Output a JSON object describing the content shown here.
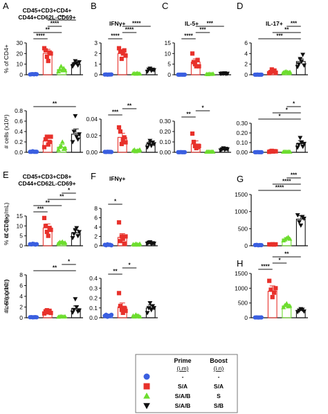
{
  "colors": {
    "blue": "#3a5fe0",
    "red": "#e8312b",
    "green": "#6ddd2e",
    "black": "#111111",
    "axis": "#111111"
  },
  "chart_data": [
    {
      "panel": "A",
      "type": "bar",
      "title": "CD45+CD3+CD4+ CD44+CD62L-CD69+",
      "title_lines": [
        "CD45+CD3+CD4+",
        "CD44+CD62L-CD69+"
      ],
      "ylabel": "% of CD4+",
      "ylim": [
        0,
        30
      ],
      "yticks": [
        "0",
        "10",
        "20",
        "30"
      ],
      "values": [
        0.5,
        20,
        5,
        10
      ],
      "errors": [
        0.3,
        4,
        2,
        2
      ],
      "points": [
        [
          0.3,
          0.5,
          0.6,
          0.4,
          0.7,
          0.5
        ],
        [
          25,
          23,
          17,
          13,
          21,
          20
        ],
        [
          3,
          5,
          8,
          4,
          6,
          4
        ],
        [
          8,
          10,
          13,
          11,
          9,
          12
        ]
      ],
      "sig": [
        {
          "a": 0,
          "b": 1,
          "label": "****"
        },
        {
          "a": 0,
          "b": 2,
          "label": "**"
        },
        {
          "a": 1,
          "b": 2,
          "label": "****"
        },
        {
          "a": 1,
          "b": 3,
          "label": "**"
        }
      ]
    },
    {
      "panel": "B",
      "type": "bar",
      "title": "IFNγ+",
      "title_lines": [
        "IFNγ+"
      ],
      "ylabel": "",
      "ylim": [
        0,
        3
      ],
      "yticks": [
        "0",
        "1",
        "2",
        "3"
      ],
      "values": [
        0.02,
        2.0,
        0.1,
        0.45
      ],
      "errors": [
        0.01,
        0.3,
        0.05,
        0.1
      ],
      "points": [
        [
          0.02,
          0.03,
          0.01,
          0.02,
          0.02,
          0.03
        ],
        [
          2.5,
          2.2,
          1.5,
          2.0,
          2.3,
          1.8
        ],
        [
          0.1,
          0.12,
          0.08,
          0.15,
          0.1,
          0.09
        ],
        [
          0.3,
          0.5,
          0.6,
          0.4,
          0.5,
          0.45
        ]
      ],
      "sig": [
        {
          "a": 0,
          "b": 1,
          "label": "****"
        },
        {
          "a": 1,
          "b": 2,
          "label": "****"
        },
        {
          "a": 1,
          "b": 3,
          "label": "****"
        }
      ]
    },
    {
      "panel": "C",
      "type": "bar",
      "title": "IL-5+",
      "title_lines": [
        "IL-5+"
      ],
      "ylabel": "",
      "ylim": [
        0,
        15
      ],
      "yticks": [
        "0",
        "5",
        "10",
        "15"
      ],
      "values": [
        0.05,
        6,
        0.3,
        0.6
      ],
      "errors": [
        0.05,
        1.5,
        0.2,
        0.3
      ],
      "points": [
        [
          0.05,
          0.04,
          0.06,
          0.05,
          0.05,
          0.05
        ],
        [
          10,
          6,
          5,
          4,
          7,
          4
        ],
        [
          0.3,
          0.2,
          0.4,
          0.3,
          0.3,
          0.4
        ],
        [
          0.5,
          0.7,
          0.6,
          0.8,
          0.5,
          0.6
        ]
      ],
      "sig": [
        {
          "a": 0,
          "b": 1,
          "label": "****"
        },
        {
          "a": 1,
          "b": 2,
          "label": "***"
        },
        {
          "a": 1,
          "b": 3,
          "label": "***"
        }
      ]
    },
    {
      "panel": "D",
      "type": "bar",
      "title": "IL-17+",
      "title_lines": [
        "IL-17+"
      ],
      "ylabel": "",
      "ylim": [
        0,
        6
      ],
      "yticks": [
        "0",
        "2",
        "4",
        "6"
      ],
      "values": [
        0.02,
        0.6,
        0.5,
        2.5
      ],
      "errors": [
        0.01,
        0.3,
        0.15,
        0.5
      ],
      "points": [
        [
          0.02,
          0.02,
          0.03,
          0.01,
          0.02,
          0.02
        ],
        [
          0.3,
          0.5,
          1.0,
          0.6,
          0.8,
          0.4
        ],
        [
          0.4,
          0.5,
          0.6,
          0.5,
          0.4,
          0.5
        ],
        [
          1.5,
          2.0,
          3.0,
          2.5,
          3.8,
          1.8
        ]
      ],
      "sig": [
        {
          "a": 0,
          "b": 3,
          "label": "***"
        },
        {
          "a": 1,
          "b": 3,
          "label": "**"
        },
        {
          "a": 2,
          "b": 3,
          "label": "***"
        }
      ]
    },
    {
      "panel": "A2",
      "type": "bar",
      "title": "",
      "title_lines": [],
      "ylabel": "# cells (x10⁶)",
      "ylim": [
        0,
        0.8
      ],
      "yticks": [
        "0.0",
        "0.2",
        "0.4",
        "0.6",
        "0.8"
      ],
      "values": [
        0.01,
        0.22,
        0.1,
        0.35
      ],
      "errors": [
        0.005,
        0.06,
        0.05,
        0.1
      ],
      "points": [
        [
          0.01,
          0.01,
          0.02,
          0.01,
          0.01,
          0.01
        ],
        [
          0.1,
          0.25,
          0.3,
          0.15,
          0.2,
          0.3
        ],
        [
          0.05,
          0.1,
          0.12,
          0.2,
          0.06,
          0.08
        ],
        [
          0.2,
          0.4,
          0.7,
          0.3,
          0.25,
          0.35
        ]
      ],
      "sig": [
        {
          "a": 0,
          "b": 3,
          "label": "**"
        }
      ]
    },
    {
      "panel": "B2",
      "type": "bar",
      "title": "",
      "title_lines": [],
      "ylabel": "",
      "ylim": [
        0,
        0.04
      ],
      "yticks": [
        "0.00",
        "0.02",
        "0.04"
      ],
      "values": [
        0.0005,
        0.018,
        0.002,
        0.01
      ],
      "errors": [
        0.0002,
        0.005,
        0.001,
        0.003
      ],
      "points": [
        [
          0.0005,
          0.0004,
          0.0006,
          0.0005,
          0.0005,
          0.0004
        ],
        [
          0.03,
          0.025,
          0.01,
          0.015,
          0.018,
          0.012
        ],
        [
          0.002,
          0.003,
          0.001,
          0.002,
          0.002,
          0.003
        ],
        [
          0.006,
          0.01,
          0.014,
          0.008,
          0.012,
          0.01
        ]
      ],
      "sig": [
        {
          "a": 0,
          "b": 1,
          "label": "***"
        },
        {
          "a": 1,
          "b": 2,
          "label": "**"
        }
      ]
    },
    {
      "panel": "C2",
      "type": "bar",
      "title": "",
      "title_lines": [],
      "ylabel": "",
      "ylim": [
        0,
        0.3
      ],
      "yticks": [
        "0.00",
        "0.10",
        "0.20",
        "0.30"
      ],
      "values": [
        0.001,
        0.08,
        0.005,
        0.03
      ],
      "errors": [
        0.0005,
        0.03,
        0.003,
        0.01
      ],
      "points": [
        [
          0.001,
          0.001,
          0.002,
          0.001,
          0.001,
          0.001
        ],
        [
          0.18,
          0.1,
          0.06,
          0.04,
          0.05,
          0.06
        ],
        [
          0.004,
          0.006,
          0.005,
          0.004,
          0.006,
          0.005
        ],
        [
          0.02,
          0.03,
          0.04,
          0.025,
          0.035,
          0.03
        ]
      ],
      "sig": [
        {
          "a": 0,
          "b": 1,
          "label": "**"
        },
        {
          "a": 1,
          "b": 2,
          "label": "*"
        }
      ]
    },
    {
      "panel": "D2",
      "type": "bar",
      "title": "",
      "title_lines": [],
      "ylabel": "",
      "ylim": [
        0,
        0.3
      ],
      "yticks": [
        "0.00",
        "0.10",
        "0.20",
        "0.30"
      ],
      "values": [
        0.001,
        0.01,
        0.005,
        0.09
      ],
      "errors": [
        0.0005,
        0.005,
        0.003,
        0.03
      ],
      "points": [
        [
          0.001,
          0.001,
          0.002,
          0.001,
          0.001,
          0.001
        ],
        [
          0.005,
          0.01,
          0.015,
          0.008,
          0.012,
          0.01
        ],
        [
          0.004,
          0.006,
          0.005,
          0.004,
          0.006,
          0.005
        ],
        [
          0.05,
          0.08,
          0.15,
          0.1,
          0.06,
          0.09
        ]
      ],
      "sig": [
        {
          "a": 0,
          "b": 3,
          "label": "*"
        },
        {
          "a": 1,
          "b": 3,
          "label": "*"
        },
        {
          "a": 2,
          "b": 3,
          "label": "*"
        }
      ]
    },
    {
      "panel": "E",
      "type": "bar",
      "title": "CD45+CD3+CD8+ CD44+CD62L-CD69+",
      "title_lines": [
        "CD45+CD3+CD8+",
        "CD44+CD62L-CD69+"
      ],
      "ylabel": "% of CD8+",
      "ylim": [
        0,
        15
      ],
      "yticks": [
        "0",
        "5",
        "10",
        "15"
      ],
      "values": [
        0.8,
        9,
        1.5,
        6.5
      ],
      "errors": [
        0.2,
        2,
        0.5,
        1.5
      ],
      "points": [
        [
          0.8,
          0.7,
          1.0,
          0.9,
          0.6,
          0.8
        ],
        [
          14,
          10,
          7,
          5,
          9,
          8
        ],
        [
          1.2,
          1.8,
          1.5,
          2.0,
          1.3,
          1.5
        ],
        [
          4,
          6,
          8,
          9,
          5,
          7
        ]
      ],
      "sig": [
        {
          "a": 0,
          "b": 1,
          "label": "***"
        },
        {
          "a": 0,
          "b": 2,
          "label": "**"
        },
        {
          "a": 1,
          "b": 3,
          "label": "**"
        },
        {
          "a": 2,
          "b": 3,
          "label": "*"
        }
      ]
    },
    {
      "panel": "F",
      "type": "bar",
      "title": "IFNγ+",
      "title_lines": [
        "IFNγ+"
      ],
      "ylabel": "",
      "ylim": [
        0,
        8
      ],
      "yticks": [
        "0",
        "2",
        "4",
        "6",
        "8"
      ],
      "values": [
        0.2,
        1.8,
        0.3,
        0.6
      ],
      "errors": [
        0.1,
        0.8,
        0.1,
        0.2
      ],
      "points": [
        [
          0.2,
          0.1,
          0.3,
          0.2,
          0.2,
          0.1
        ],
        [
          5,
          1,
          2,
          1.5,
          0.5,
          2
        ],
        [
          0.3,
          0.2,
          0.4,
          0.3,
          0.2,
          0.4
        ],
        [
          0.5,
          0.7,
          0.8,
          0.4,
          0.6,
          0.5
        ]
      ],
      "sig": [
        {
          "a": 0,
          "b": 1,
          "label": "*"
        }
      ]
    },
    {
      "panel": "G",
      "type": "bar",
      "title": "",
      "title_lines": [],
      "ylabel": "IL-17 (pg/mL)",
      "ylim": [
        0,
        1500
      ],
      "yticks": [
        "0",
        "500",
        "1000",
        "1500"
      ],
      "values": [
        20,
        40,
        200,
        780
      ],
      "errors": [
        5,
        10,
        40,
        100
      ],
      "points": [
        [
          20,
          25,
          15,
          20,
          18
        ],
        [
          40,
          38,
          45,
          35,
          42
        ],
        [
          150,
          180,
          220,
          250,
          200
        ],
        [
          900,
          700,
          600,
          850,
          800
        ]
      ],
      "sig": [
        {
          "a": 0,
          "b": 3,
          "label": "****"
        },
        {
          "a": 1,
          "b": 3,
          "label": "****"
        },
        {
          "a": 2,
          "b": 3,
          "label": "***"
        }
      ]
    },
    {
      "panel": "E2",
      "type": "bar",
      "title": "",
      "title_lines": [],
      "ylabel": "# cells (x10⁶)",
      "ylim": [
        0,
        8
      ],
      "yticks": [
        "0",
        "2",
        "4",
        "6",
        "8"
      ],
      "values": [
        0.1,
        1.1,
        0.2,
        1.7
      ],
      "errors": [
        0.03,
        0.3,
        0.05,
        0.5
      ],
      "points": [
        [
          0.1,
          0.12,
          0.08,
          0.1,
          0.11,
          0.09
        ],
        [
          0.8,
          1.2,
          1.4,
          1.0,
          1.3,
          0.9
        ],
        [
          0.15,
          0.2,
          0.25,
          0.2,
          0.18,
          0.22
        ],
        [
          1.0,
          1.5,
          3.5,
          2.0,
          1.2,
          1.4
        ]
      ],
      "sig": [
        {
          "a": 0,
          "b": 3,
          "label": "**"
        },
        {
          "a": 2,
          "b": 3,
          "label": "*"
        }
      ]
    },
    {
      "panel": "F2",
      "type": "bar",
      "title": "",
      "title_lines": [],
      "ylabel": "",
      "ylim": [
        0,
        0.4
      ],
      "yticks": [
        "0.0",
        "0.1",
        "0.2",
        "0.3",
        "0.4"
      ],
      "values": [
        0.02,
        0.11,
        0.02,
        0.1
      ],
      "errors": [
        0.005,
        0.04,
        0.005,
        0.03
      ],
      "points": [
        [
          0.02,
          0.03,
          0.01,
          0.02,
          0.02,
          0.03
        ],
        [
          0.25,
          0.12,
          0.08,
          0.05,
          0.1,
          0.07
        ],
        [
          0.02,
          0.01,
          0.03,
          0.02,
          0.02,
          0.01
        ],
        [
          0.05,
          0.1,
          0.15,
          0.08,
          0.12,
          0.1
        ]
      ],
      "sig": [
        {
          "a": 0,
          "b": 1,
          "label": "**"
        },
        {
          "a": 1,
          "b": 2,
          "label": "*"
        }
      ]
    },
    {
      "panel": "H",
      "type": "bar",
      "title": "",
      "title_lines": [],
      "ylabel": "IL-5 (pg/mL)",
      "ylim": [
        0,
        1500
      ],
      "yticks": [
        "0",
        "500",
        "1000",
        "1500"
      ],
      "values": [
        10,
        900,
        400,
        250
      ],
      "errors": [
        5,
        180,
        60,
        50
      ],
      "points": [
        [
          10,
          12,
          8,
          10,
          11
        ],
        [
          1250,
          950,
          700,
          850,
          1000
        ],
        [
          350,
          420,
          480,
          380,
          400
        ],
        [
          200,
          250,
          300,
          280,
          220
        ]
      ],
      "sig": [
        {
          "a": 0,
          "b": 1,
          "label": "****"
        },
        {
          "a": 1,
          "b": 2,
          "label": "*"
        },
        {
          "a": 1,
          "b": 3,
          "label": "**"
        }
      ]
    }
  ],
  "panel_letters": [
    "A",
    "B",
    "C",
    "D",
    "E",
    "F",
    "G",
    "H"
  ],
  "legend": {
    "header": [
      "Prime",
      "Boost"
    ],
    "subheader": [
      "(i.m)",
      "(i.n)"
    ],
    "rows": [
      {
        "symbol": "circle",
        "color": "blue",
        "prime": "-",
        "boost": "-"
      },
      {
        "symbol": "square",
        "color": "red",
        "prime": "S/A",
        "boost": "S/A"
      },
      {
        "symbol": "triangle",
        "color": "green",
        "prime": "S/A/B",
        "boost": "S"
      },
      {
        "symbol": "triangle-down",
        "color": "black",
        "prime": "S/A/B",
        "boost": "S/B"
      }
    ]
  }
}
